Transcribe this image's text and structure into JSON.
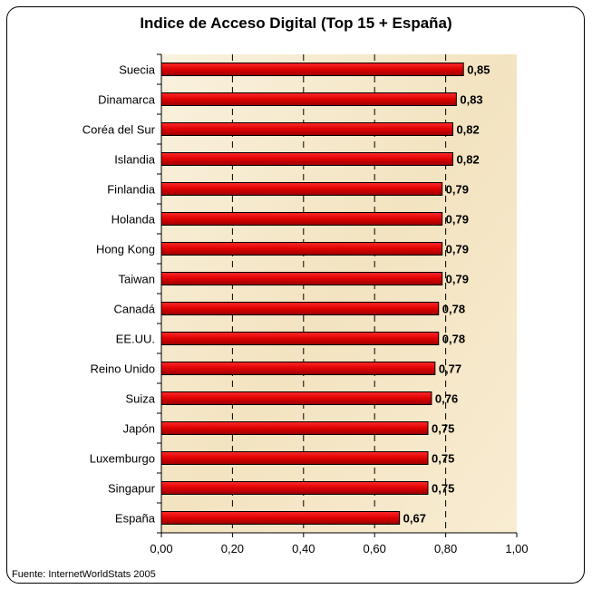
{
  "chart_data": {
    "type": "bar",
    "orientation": "horizontal",
    "title": "Indice de Acceso Digital (Top 15 + España)",
    "categories": [
      "Suecia",
      "Dinamarca",
      "Coréa del Sur",
      "Islandia",
      "Finlandia",
      "Holanda",
      "Hong Kong",
      "Taiwan",
      "Canadá",
      "EE.UU.",
      "Reino Unido",
      "Suiza",
      "Japón",
      "Luxemburgo",
      "Singapur",
      "España"
    ],
    "values": [
      0.85,
      0.83,
      0.82,
      0.82,
      0.79,
      0.79,
      0.79,
      0.79,
      0.78,
      0.78,
      0.77,
      0.76,
      0.75,
      0.75,
      0.75,
      0.67
    ],
    "value_labels": [
      "0,85",
      "0,83",
      "0,82",
      "0,82",
      "0,79",
      "0,79",
      "0,79",
      "0,79",
      "0,78",
      "0,78",
      "0,77",
      "0,76",
      "0,75",
      "0,75",
      "0,75",
      "0,67"
    ],
    "xticks": [
      0,
      0.2,
      0.4,
      0.6,
      0.8,
      1.0
    ],
    "xtick_labels": [
      "0,00",
      "0,20",
      "0,40",
      "0,60",
      "0,80",
      "1,00"
    ],
    "xlim": [
      0,
      1
    ],
    "grid": "vertical dashed",
    "bar_color": "#dd0000",
    "plot_background": "#f7ecd3"
  },
  "footer": {
    "source": "Fuente: InternetWorldStats 2005"
  }
}
